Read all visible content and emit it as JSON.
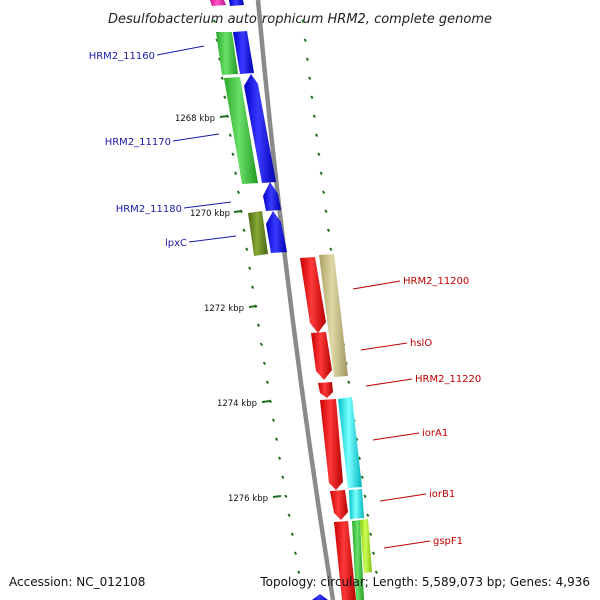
{
  "title": "Desulfobacterium autotrophicum HRM2, complete genome",
  "footer": {
    "accession": "Accession: NC_012108",
    "topology": "Topology: circular; Length: 5,589,073 bp; Genes: 4,936"
  },
  "scale_labels": [
    "1268 kbp",
    "1270 kbp",
    "1272 kbp",
    "1274 kbp",
    "1276 kbp"
  ],
  "gene_labels_left": [
    "HRM2_11160",
    "HRM2_11170",
    "HRM2_11180",
    "lpxC"
  ],
  "gene_labels_right": [
    "HRM2_11200",
    "hslO",
    "HRM2_11220",
    "iorA1",
    "iorB1",
    "gspF1"
  ],
  "colors": {
    "blue": "#0000ee",
    "green": "#3cc83c",
    "dark_olive": "#6a8a20",
    "red": "#ee0000",
    "khaki": "#c8be82",
    "cyan": "#00e6ee",
    "lime": "#aaee22",
    "magenta": "#ee22aa",
    "backbone": "#888888",
    "tick": "#1e6e1e"
  }
}
